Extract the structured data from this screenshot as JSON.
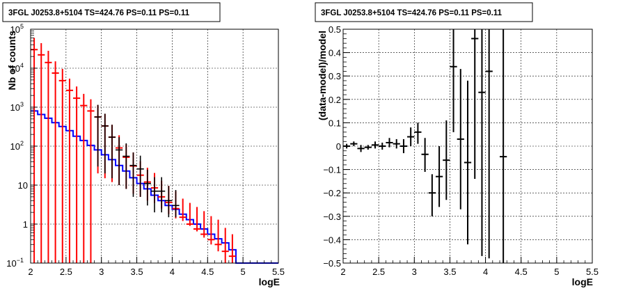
{
  "chart_data": [
    {
      "type": "histogram",
      "title": "3FGL J0253.8+5104 TS=424.76 PS=0.11 PS=0.11",
      "xlabel": "logE",
      "ylabel": "Nb of counts",
      "xlim": [
        2,
        5.5
      ],
      "ylim": [
        0.1,
        100000
      ],
      "yscale": "log",
      "grid": true,
      "x_ticks": [
        "2",
        "2.5",
        "3",
        "3.5",
        "4",
        "4.5",
        "5",
        "5.5"
      ],
      "y_ticks": [
        {
          "value": 0.1,
          "base": "10",
          "exp": "−1"
        },
        {
          "value": 1,
          "base": "1",
          "exp": ""
        },
        {
          "value": 10,
          "base": "10",
          "exp": ""
        },
        {
          "value": 100,
          "base": "10",
          "exp": "2"
        },
        {
          "value": 1000,
          "base": "10",
          "exp": "3"
        },
        {
          "value": 10000,
          "base": "10",
          "exp": "4"
        },
        {
          "value": 100000,
          "base": "10",
          "exp": "5"
        }
      ],
      "series": [
        {
          "kind": "step",
          "color": "#0000ff",
          "bin_width": 0.1,
          "x": [
            2.0,
            2.1,
            2.2,
            2.3,
            2.4,
            2.5,
            2.6,
            2.7,
            2.8,
            2.9,
            3.0,
            3.1,
            3.2,
            3.3,
            3.4,
            3.5,
            3.6,
            3.7,
            3.8,
            3.9,
            4.0,
            4.1,
            4.2,
            4.3,
            4.4,
            4.5,
            4.6,
            4.7,
            4.8,
            4.9,
            5.0,
            5.1,
            5.2,
            5.3,
            5.4
          ],
          "values": [
            800,
            650,
            520,
            400,
            320,
            250,
            180,
            140,
            105,
            80,
            60,
            45,
            32,
            23,
            15.5,
            11,
            8,
            5.5,
            4,
            3,
            2.4,
            1.8,
            1.3,
            1.0,
            0.75,
            0.55,
            0.42,
            0.33,
            0.22,
            0.1,
            0.1,
            0.1,
            0.1,
            0.1,
            0.1
          ]
        },
        {
          "kind": "points",
          "color": "#ff0000",
          "x": [
            2.05,
            2.15,
            2.25,
            2.35,
            2.45,
            2.55,
            2.65,
            2.75,
            2.85,
            2.95,
            3.05,
            3.15,
            3.25,
            3.35,
            3.45,
            3.55,
            3.65,
            3.75,
            3.85,
            3.95,
            4.05,
            4.15,
            4.25,
            4.35,
            4.45,
            4.55,
            4.65,
            4.75,
            4.85
          ],
          "values": [
            30000,
            22000,
            14000,
            7500,
            4800,
            2700,
            1700,
            1100,
            800,
            560,
            330,
            170,
            90,
            52,
            31,
            18,
            12,
            8.5,
            5,
            3.6,
            2.5,
            1.5,
            1.0,
            0.75,
            0.55,
            0.4,
            0.3,
            0.2,
            0.15
          ],
          "err_low": [
            30000,
            22000,
            14000,
            7500,
            4800,
            2700,
            1700,
            1100,
            800,
            540,
            315,
            158,
            80,
            44,
            25,
            13,
            8,
            5,
            2.5,
            1.8,
            1.1,
            0.3,
            0.1,
            0.1,
            0.1,
            0.1,
            0.1,
            0.1,
            0.1
          ],
          "err_high": [
            30000,
            22000,
            14000,
            7500,
            4800,
            2700,
            1700,
            1100,
            800,
            580,
            345,
            182,
            100,
            60,
            38,
            23,
            16,
            12,
            8,
            6,
            4.5,
            3,
            2.5,
            2,
            1.6,
            1.2,
            1.0,
            0.6,
            0.4
          ]
        },
        {
          "kind": "points",
          "color": "#000000",
          "x": [
            2.95,
            3.05,
            3.15,
            3.25,
            3.35,
            3.45,
            3.55,
            3.65,
            3.75,
            3.85,
            3.95,
            4.05
          ],
          "values": [
            560,
            330,
            170,
            80,
            55,
            32,
            26,
            11,
            7,
            7,
            4,
            3
          ],
          "err_low": [
            530,
            310,
            155,
            70,
            47,
            27,
            21,
            8,
            5,
            5,
            2.5,
            1.5
          ],
          "err_high": [
            590,
            350,
            185,
            90,
            63,
            37,
            31,
            14,
            9,
            9,
            5.5,
            4.5
          ]
        }
      ]
    },
    {
      "type": "scatter",
      "title": "3FGL J0253.8+5104 TS=424.76 PS=0.11 PS=0.11",
      "xlabel": "logE",
      "ylabel": "(data-model)/model",
      "xlim": [
        2,
        5.5
      ],
      "ylim": [
        -0.5,
        0.5
      ],
      "grid": true,
      "x_ticks": [
        "2",
        "2.5",
        "3",
        "3.5",
        "4",
        "4.5",
        "5",
        "5.5"
      ],
      "y_ticks": [
        "−0.5",
        "−0.4",
        "−0.3",
        "−0.2",
        "−0.1",
        "0",
        "0.1",
        "0.2",
        "0.3",
        "0.4",
        "0.5"
      ],
      "series": [
        {
          "color": "#000000",
          "x": [
            2.05,
            2.15,
            2.25,
            2.35,
            2.45,
            2.55,
            2.65,
            2.75,
            2.85,
            2.95,
            3.05,
            3.15,
            3.25,
            3.35,
            3.45,
            3.55,
            3.65,
            3.75,
            3.85,
            3.95,
            4.05,
            4.25
          ],
          "values": [
            0.0,
            0.01,
            -0.01,
            -0.005,
            0.005,
            0.0,
            0.015,
            0.01,
            0.0,
            0.04,
            0.06,
            -0.035,
            -0.2,
            -0.13,
            -0.06,
            0.34,
            0.03,
            -0.07,
            0.46,
            0.23,
            0.32,
            -0.045
          ],
          "err_low": [
            0.01,
            0.01,
            0.015,
            0.01,
            0.015,
            0.015,
            0.02,
            0.02,
            0.03,
            0.04,
            0.05,
            0.075,
            0.1,
            0.13,
            0.17,
            0.28,
            0.3,
            0.35,
            0.6,
            0.7,
            0.8,
            0.5
          ],
          "err_high": [
            0.01,
            0.01,
            0.015,
            0.01,
            0.015,
            0.015,
            0.02,
            0.02,
            0.03,
            0.04,
            0.04,
            0.07,
            0.08,
            0.13,
            0.17,
            0.2,
            0.3,
            0.35,
            0.04,
            0.27,
            0.18,
            0.55
          ]
        }
      ]
    }
  ]
}
